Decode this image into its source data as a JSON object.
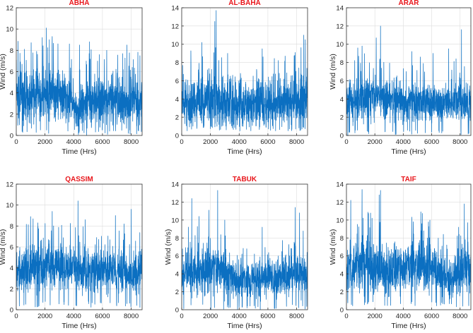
{
  "style": {
    "series_color": "#0b6fc1",
    "title_color": "#e8161b",
    "axis_color": "#333333",
    "grid_color": "#dcdcdc"
  },
  "chart_data": [
    {
      "type": "line",
      "title": "ABHA",
      "xlabel": "Time (Hrs)",
      "ylabel": "Wind (m/s)",
      "xlim": [
        0,
        8760
      ],
      "ylim": [
        0,
        12
      ],
      "xticks": [
        0,
        2000,
        4000,
        6000,
        8000
      ],
      "yticks": [
        0,
        2,
        4,
        6,
        8,
        10,
        12
      ],
      "grid": true,
      "series": [
        {
          "name": "Wind speed",
          "x_start": 0,
          "x_end": 8760,
          "min": 0,
          "max": 10.1,
          "profile": [
            3.8,
            3.9,
            3.9,
            3.8,
            3.9,
            3.8,
            3.8,
            3.7,
            3.5,
            3.0,
            2.8,
            2.9,
            3.2,
            3.4,
            3.4,
            3.3,
            3.3,
            3.2,
            3.1,
            3.3,
            3.5,
            3.6
          ],
          "spread": [
            2.8,
            2.9,
            3.0,
            3.0,
            3.1,
            3.0,
            3.0,
            2.9,
            2.8,
            2.4,
            2.3,
            2.5,
            2.7,
            2.9,
            2.9,
            2.8,
            2.8,
            2.7,
            2.6,
            2.8,
            2.8,
            2.8
          ],
          "peaks": [
            [
              2100,
              10.1
            ],
            [
              2500,
              9.3
            ],
            [
              2300,
              9.0
            ],
            [
              3700,
              8.6
            ],
            [
              4400,
              8.5
            ],
            [
              5100,
              8.8
            ],
            [
              7700,
              8.5
            ],
            [
              6300,
              8.0
            ]
          ]
        }
      ]
    },
    {
      "type": "line",
      "title": "AL-BAHA",
      "xlabel": "Time (Hrs)",
      "ylabel": "",
      "xlim": [
        0,
        8760
      ],
      "ylim": [
        0,
        14
      ],
      "xticks": [
        0,
        2000,
        4000,
        6000,
        8000
      ],
      "yticks": [
        0,
        2,
        4,
        6,
        8,
        10,
        12,
        14
      ],
      "grid": true,
      "series": [
        {
          "name": "Wind speed",
          "x_start": 0,
          "x_end": 8760,
          "min": 0.5,
          "max": 13.7,
          "profile": [
            3.6,
            3.7,
            3.8,
            3.9,
            3.9,
            4.0,
            3.7,
            3.6,
            3.5,
            3.5,
            3.4,
            3.4,
            3.5,
            3.6,
            3.6,
            3.6,
            3.5,
            3.6,
            3.7,
            3.8,
            3.9,
            4.0
          ],
          "spread": [
            3.0,
            3.1,
            3.2,
            3.3,
            3.4,
            3.4,
            3.2,
            3.1,
            3.0,
            3.0,
            3.0,
            3.0,
            3.0,
            3.0,
            3.0,
            3.0,
            3.0,
            3.1,
            3.1,
            3.2,
            3.3,
            3.5
          ],
          "peaks": [
            [
              2400,
              13.7
            ],
            [
              2300,
              12.5
            ],
            [
              8500,
              11.0
            ],
            [
              8600,
              10.5
            ],
            [
              1400,
              10.2
            ],
            [
              5600,
              9.5
            ],
            [
              3200,
              9.0
            ],
            [
              7200,
              8.7
            ]
          ]
        }
      ]
    },
    {
      "type": "line",
      "title": "ARAR",
      "xlabel": "Time (Hrs)",
      "ylabel": "Wind (m/s)",
      "xlim": [
        0,
        8760
      ],
      "ylim": [
        0,
        14
      ],
      "xticks": [
        0,
        2000,
        4000,
        6000,
        8000
      ],
      "yticks": [
        0,
        2,
        4,
        6,
        8,
        10,
        12,
        14
      ],
      "grid": true,
      "series": [
        {
          "name": "Wind speed",
          "x_start": 0,
          "x_end": 8760,
          "min": 0,
          "max": 12.0,
          "profile": [
            3.8,
            3.9,
            4.1,
            4.3,
            4.2,
            4.0,
            3.9,
            3.8,
            3.7,
            3.6,
            3.6,
            3.6,
            3.7,
            3.8,
            3.7,
            3.6,
            3.6,
            3.7,
            3.8,
            3.9,
            3.8,
            3.8
          ],
          "spread": [
            2.5,
            2.6,
            2.8,
            2.9,
            2.8,
            2.7,
            2.6,
            2.5,
            2.4,
            2.4,
            2.4,
            2.4,
            2.5,
            2.5,
            2.4,
            2.4,
            2.4,
            2.5,
            2.5,
            2.6,
            2.5,
            2.5
          ],
          "peaks": [
            [
              2400,
              12.0
            ],
            [
              8100,
              11.6
            ],
            [
              2100,
              10.7
            ],
            [
              1100,
              9.8
            ],
            [
              800,
              9.6
            ],
            [
              7200,
              9.5
            ],
            [
              4600,
              9.2
            ],
            [
              6100,
              9.0
            ],
            [
              5200,
              8.6
            ]
          ]
        }
      ]
    },
    {
      "type": "line",
      "title": "QASSIM",
      "xlabel": "Time (Hrs)",
      "ylabel": "Wind (m/s)",
      "xlim": [
        0,
        8760
      ],
      "ylim": [
        0,
        12
      ],
      "xticks": [
        0,
        2000,
        4000,
        6000,
        8000
      ],
      "yticks": [
        0,
        2,
        4,
        6,
        8,
        10,
        12
      ],
      "grid": true,
      "series": [
        {
          "name": "Wind speed",
          "x_start": 0,
          "x_end": 8760,
          "min": 0.2,
          "max": 10.4,
          "profile": [
            3.8,
            3.9,
            4.0,
            4.2,
            4.1,
            4.0,
            3.9,
            4.0,
            4.1,
            4.0,
            3.9,
            3.8,
            3.7,
            3.6,
            3.6,
            3.7,
            3.8,
            3.9,
            3.5,
            3.2,
            3.4,
            3.6
          ],
          "spread": [
            2.3,
            2.4,
            2.5,
            2.6,
            2.5,
            2.4,
            2.4,
            2.5,
            2.5,
            2.4,
            2.3,
            2.3,
            2.3,
            2.2,
            2.2,
            2.3,
            2.3,
            2.4,
            2.2,
            2.0,
            2.2,
            2.3
          ],
          "peaks": [
            [
              4300,
              10.4
            ],
            [
              8000,
              9.6
            ],
            [
              2500,
              9.4
            ],
            [
              6900,
              9.0
            ],
            [
              1000,
              8.9
            ],
            [
              4800,
              8.6
            ],
            [
              1500,
              8.3
            ],
            [
              7500,
              8.2
            ]
          ]
        }
      ]
    },
    {
      "type": "line",
      "title": "TABUK",
      "xlabel": "Time (Hrs)",
      "ylabel": "Wind (m/s)",
      "xlim": [
        0,
        8760
      ],
      "ylim": [
        0,
        14
      ],
      "xticks": [
        0,
        2000,
        4000,
        6000,
        8000
      ],
      "yticks": [
        0,
        2,
        4,
        6,
        8,
        10,
        12,
        14
      ],
      "grid": true,
      "series": [
        {
          "name": "Wind speed",
          "x_start": 0,
          "x_end": 8760,
          "min": 0,
          "max": 13.3,
          "profile": [
            4.0,
            4.2,
            4.5,
            4.6,
            4.5,
            4.4,
            4.3,
            4.1,
            3.7,
            3.4,
            3.3,
            3.4,
            3.6,
            3.7,
            3.6,
            3.5,
            3.4,
            3.6,
            3.7,
            3.9,
            4.0,
            3.9
          ],
          "spread": [
            2.6,
            2.8,
            3.0,
            3.1,
            3.0,
            3.0,
            2.9,
            2.8,
            2.5,
            2.3,
            2.2,
            2.3,
            2.4,
            2.5,
            2.4,
            2.4,
            2.3,
            2.4,
            2.5,
            2.6,
            2.7,
            2.6
          ],
          "peaks": [
            [
              2500,
              13.3
            ],
            [
              700,
              12.4
            ],
            [
              7900,
              11.4
            ],
            [
              1900,
              11.1
            ],
            [
              1200,
              10.4
            ],
            [
              8200,
              10.8
            ],
            [
              3000,
              10.0
            ],
            [
              5600,
              9.2
            ]
          ]
        }
      ]
    },
    {
      "type": "line",
      "title": "TAIF",
      "xlabel": "Time (Hrs)",
      "ylabel": "Wind (m/s)",
      "xlim": [
        0,
        8760
      ],
      "ylim": [
        0,
        14
      ],
      "xticks": [
        0,
        2000,
        4000,
        6000,
        8000
      ],
      "yticks": [
        0,
        2,
        4,
        6,
        8,
        10,
        12,
        14
      ],
      "grid": true,
      "series": [
        {
          "name": "Wind speed",
          "x_start": 0,
          "x_end": 8760,
          "min": 0.3,
          "max": 13.4,
          "profile": [
            4.7,
            4.9,
            5.1,
            5.0,
            4.9,
            4.7,
            4.4,
            4.1,
            4.2,
            4.6,
            4.9,
            5.2,
            5.3,
            5.1,
            4.8,
            4.4,
            4.0,
            3.6,
            3.5,
            3.9,
            4.5,
            4.8
          ],
          "spread": [
            3.2,
            3.4,
            3.5,
            3.5,
            3.4,
            3.2,
            3.0,
            2.8,
            2.8,
            3.0,
            3.2,
            3.4,
            3.4,
            3.3,
            3.1,
            2.9,
            2.6,
            2.4,
            2.3,
            2.6,
            3.0,
            3.1
          ],
          "peaks": [
            [
              1100,
              13.4
            ],
            [
              2400,
              13.3
            ],
            [
              2300,
              12.8
            ],
            [
              300,
              12.2
            ],
            [
              8300,
              11.8
            ],
            [
              1800,
              10.2
            ],
            [
              4700,
              9.8
            ],
            [
              5300,
              9.6
            ],
            [
              7900,
              9.2
            ]
          ]
        }
      ]
    }
  ]
}
